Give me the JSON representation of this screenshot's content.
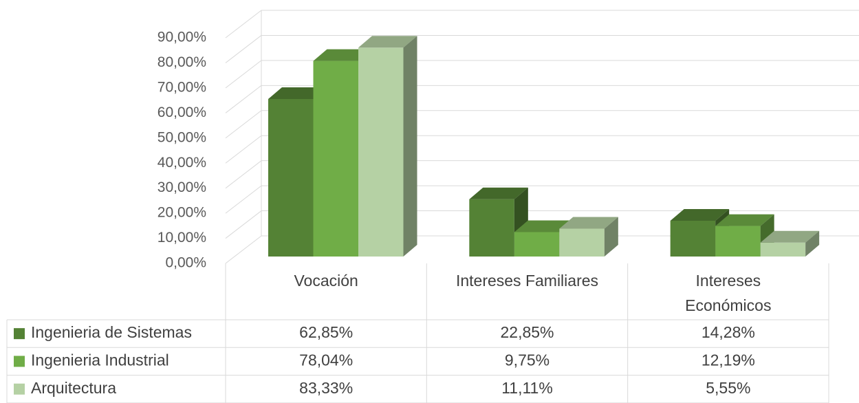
{
  "chart_data": {
    "type": "bar3d",
    "categories": [
      "Vocación",
      "Intereses Familiares",
      "Intereses Económicos"
    ],
    "series": [
      {
        "name": "Ingenieria de Sistemas",
        "color": "#548235",
        "values": [
          62.85,
          22.85,
          14.28
        ],
        "value_labels": [
          "62,85%",
          "22,85%",
          "14,28%"
        ]
      },
      {
        "name": "Ingenieria Industrial",
        "color": "#70ad47",
        "values": [
          78.04,
          9.75,
          12.19
        ],
        "value_labels": [
          "78,04%",
          "9,75%",
          "12,19%"
        ]
      },
      {
        "name": "Arquitectura",
        "color": "#b5d1a4",
        "values": [
          83.33,
          11.11,
          5.55
        ],
        "value_labels": [
          "83,33%",
          "11,11%",
          "5,55%"
        ]
      }
    ],
    "ylim": [
      0,
      90
    ],
    "yticks": [
      {
        "value": 0,
        "label": "0,00%"
      },
      {
        "value": 10,
        "label": "10,00%"
      },
      {
        "value": 20,
        "label": "20,00%"
      },
      {
        "value": 30,
        "label": "30,00%"
      },
      {
        "value": 40,
        "label": "40,00%"
      },
      {
        "value": 50,
        "label": "50,00%"
      },
      {
        "value": 60,
        "label": "60,00%"
      },
      {
        "value": 70,
        "label": "70,00%"
      },
      {
        "value": 80,
        "label": "80,00%"
      },
      {
        "value": 90,
        "label": "90,00%"
      }
    ],
    "grid": true,
    "data_table": true
  }
}
